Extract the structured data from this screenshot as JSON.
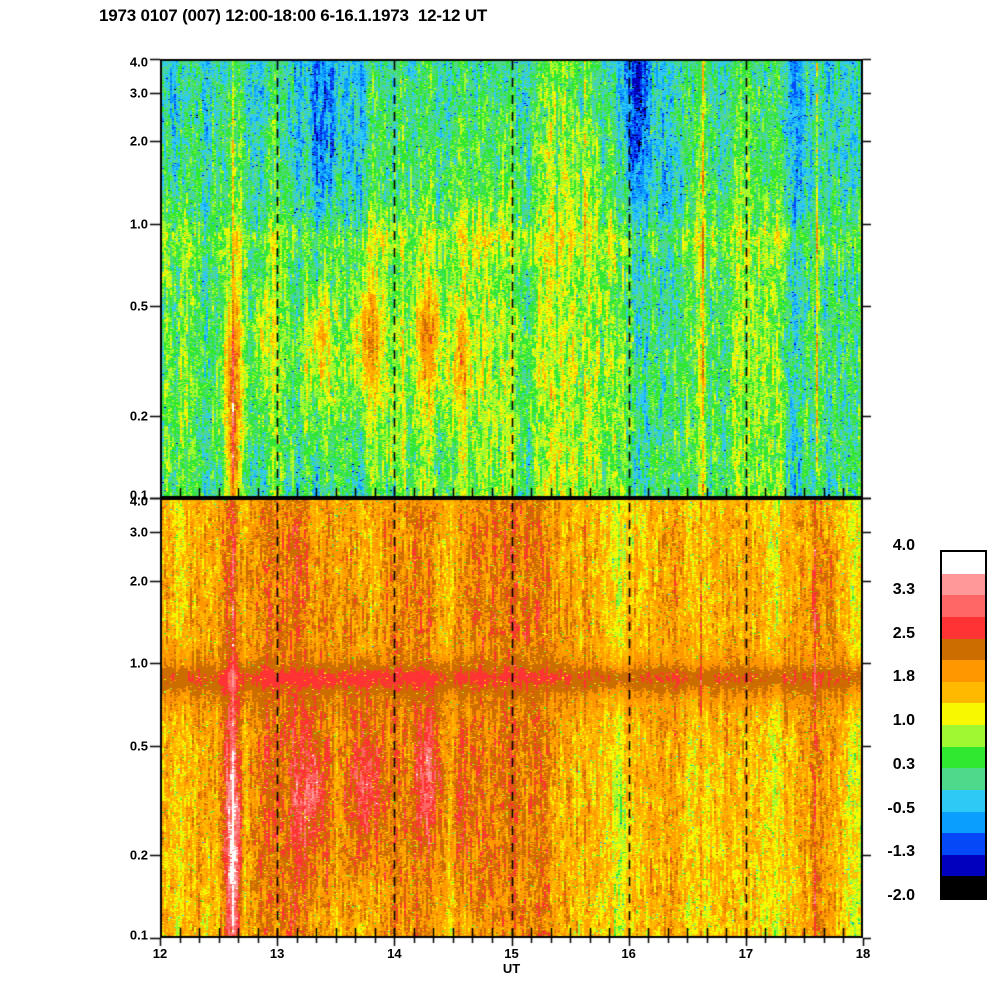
{
  "title": "1973 0107 (007) 12:00-18:00 6-16.1.1973  12-12 UT",
  "chart_data": {
    "type": "heatmap",
    "description": "Two stacked dynamic power spectra (spectrogram panels) vs universal time; log period axis 0.1-4.0; discrete 16-level color scale of log power from -2.0 (black) to 4.0 (white).",
    "xlabel": "UT",
    "x_range": [
      12,
      18
    ],
    "x_tick_values": [
      12,
      13,
      14,
      15,
      16,
      17,
      18
    ],
    "x_tick_labels": [
      "12",
      "13",
      "14",
      "15",
      "16",
      "17",
      "18"
    ],
    "x_minor_per_hour": 6,
    "dashed_gridlines_at": [
      13,
      14,
      15,
      16,
      17
    ],
    "y_scale": "log",
    "y_range": [
      0.1,
      4.0
    ],
    "y_tick_values": [
      4.0,
      3.0,
      2.0,
      1.0,
      0.5,
      0.2,
      0.1
    ],
    "y_tick_labels": [
      "4.0",
      "3.0",
      "2.0",
      "1.0",
      "0.5",
      "0.2",
      "0.1"
    ],
    "value_step": 0.375,
    "axis_color": "#000000",
    "colorbar": {
      "max": 4.0,
      "min": -2.0,
      "tick_labels": [
        "4.0",
        "3.3",
        "2.5",
        "1.8",
        "1.0",
        "0.3",
        "-0.5",
        "-1.3",
        "-2.0"
      ],
      "colors": [
        "#ffffff",
        "#ff9999",
        "#ff6666",
        "#ff3333",
        "#cc6d00",
        "#ff9800",
        "#ffba00",
        "#f8f800",
        "#9ff832",
        "#2fe82f",
        "#4fd98a",
        "#2ec9f5",
        "#0a9eff",
        "#0448f8",
        "#0000be",
        "#000000"
      ]
    },
    "panels": [
      {
        "id": "upper-spectrogram",
        "seed": 1973,
        "base_points": [
          [
            0.1,
            0.38
          ],
          [
            0.18,
            0.45
          ],
          [
            0.3,
            0.5
          ],
          [
            0.5,
            0.45
          ],
          [
            0.68,
            0.5
          ],
          [
            0.8,
            0.72
          ],
          [
            0.92,
            0.8
          ],
          [
            1.0,
            0.55
          ],
          [
            1.3,
            0.35
          ],
          [
            2.0,
            0.28
          ],
          [
            3.0,
            0.2
          ],
          [
            4.0,
            0.12
          ]
        ],
        "bias_amp": 0.22,
        "streak_amp": 0.42,
        "streak2_amp": 0.3,
        "pixel_amp": 0.22,
        "specks": [
          {
            "prob": 0.012,
            "delta": -1.1
          },
          {
            "prob": 0.01,
            "delta": 0.6
          },
          {
            "prob": 0.008,
            "delta": -0.55
          }
        ],
        "band": null,
        "blobs": [
          {
            "t": 12.62,
            "p": 0.3,
            "amp": 1.2,
            "st": 0.05,
            "sp": 0.22
          },
          {
            "t": 12.62,
            "p": 0.12,
            "amp": 1.1,
            "st": 0.04,
            "sp": 0.25
          },
          {
            "t": 12.88,
            "p": 0.4,
            "amp": 0.85,
            "st": 0.05,
            "sp": 0.13
          },
          {
            "t": 13.35,
            "p": 0.38,
            "amp": 1.05,
            "st": 0.08,
            "sp": 0.15
          },
          {
            "t": 13.76,
            "p": 0.38,
            "amp": 1.2,
            "st": 0.09,
            "sp": 0.17
          },
          {
            "t": 14.3,
            "p": 0.4,
            "amp": 1.15,
            "st": 0.08,
            "sp": 0.15
          },
          {
            "t": 14.58,
            "p": 0.32,
            "amp": 0.85,
            "st": 0.05,
            "sp": 0.13
          },
          {
            "t": 13.6,
            "p": 0.3,
            "amp": 0.4,
            "st": 0.8,
            "sp": 0.3
          },
          {
            "t": 13.42,
            "p": 2.5,
            "amp": -0.75,
            "st": 0.09,
            "sp": 0.3
          },
          {
            "t": 16.05,
            "p": 2.4,
            "amp": -0.85,
            "st": 0.1,
            "sp": 0.35
          },
          {
            "t": 16.35,
            "p": 1.1,
            "amp": -0.5,
            "st": 0.08,
            "sp": 0.3
          },
          {
            "t": 15.9,
            "p": 3.5,
            "amp": -0.5,
            "st": 0.12,
            "sp": 0.2
          },
          {
            "t": 12.15,
            "p": 3.0,
            "amp": -0.35,
            "st": 0.12,
            "sp": 0.3
          },
          {
            "t": 14.8,
            "p": 3.3,
            "amp": -0.3,
            "st": 0.2,
            "sp": 0.25
          },
          {
            "t": 17.3,
            "p": 2.2,
            "amp": -0.25,
            "st": 0.25,
            "sp": 0.35
          }
        ],
        "spikes": [
          {
            "t": 12.62,
            "amp": 0.8
          },
          {
            "t": 13.62,
            "amp": 0.6
          },
          {
            "t": 15.62,
            "amp": 1.1
          },
          {
            "t": 16.63,
            "amp": 1.1
          },
          {
            "t": 17.6,
            "amp": 1.1
          }
        ]
      },
      {
        "id": "lower-spectrogram",
        "seed": 777,
        "base_points": [
          [
            0.1,
            1.68
          ],
          [
            0.2,
            1.72
          ],
          [
            0.35,
            1.72
          ],
          [
            0.55,
            1.78
          ],
          [
            0.7,
            1.95
          ],
          [
            0.8,
            2.05
          ],
          [
            0.9,
            2.1
          ],
          [
            1.0,
            2.0
          ],
          [
            1.15,
            1.88
          ],
          [
            1.6,
            1.85
          ],
          [
            2.5,
            1.82
          ],
          [
            3.5,
            1.78
          ],
          [
            4.0,
            1.72
          ]
        ],
        "bias_amp": 0.18,
        "streak_amp": 0.38,
        "streak2_amp": 0.26,
        "pixel_amp": 0.2,
        "specks": [
          {
            "prob": 0.025,
            "delta": -0.55
          },
          {
            "prob": 0.012,
            "delta": -1.35
          },
          {
            "prob": 0.005,
            "delta": 0.72
          }
        ],
        "band": {
          "center_lp": -0.055,
          "sigma": 0.032,
          "amp": 0.4,
          "suppress_center": -0.06,
          "suppress_sigma": 0.075,
          "suppress": 0.72
        },
        "blobs": [
          {
            "t": 12.62,
            "p": 0.3,
            "amp": 1.1,
            "st": 0.05,
            "sp": 0.25
          },
          {
            "t": 12.62,
            "p": 0.12,
            "amp": 1.0,
            "st": 0.04,
            "sp": 0.28
          },
          {
            "t": 13.3,
            "p": 0.35,
            "amp": 0.95,
            "st": 0.08,
            "sp": 0.16
          },
          {
            "t": 13.76,
            "p": 0.36,
            "amp": 1.05,
            "st": 0.09,
            "sp": 0.18
          },
          {
            "t": 14.3,
            "p": 0.38,
            "amp": 0.95,
            "st": 0.08,
            "sp": 0.16
          },
          {
            "t": 14.58,
            "p": 0.3,
            "amp": 0.7,
            "st": 0.05,
            "sp": 0.13
          },
          {
            "t": 13.6,
            "p": 0.3,
            "amp": 0.3,
            "st": 0.8,
            "sp": 0.3
          },
          {
            "t": 12.62,
            "p": 1.8,
            "amp": 0.5,
            "st": 0.03,
            "sp": 0.5
          },
          {
            "t": 16.1,
            "p": 2.5,
            "amp": -0.15,
            "st": 0.12,
            "sp": 0.3
          }
        ],
        "spikes": [
          {
            "t": 12.62,
            "amp": 0.6
          },
          {
            "t": 15.62,
            "amp": 0.5
          },
          {
            "t": 16.61,
            "amp": 0.8
          },
          {
            "t": 17.59,
            "amp": 0.8
          }
        ]
      }
    ]
  }
}
